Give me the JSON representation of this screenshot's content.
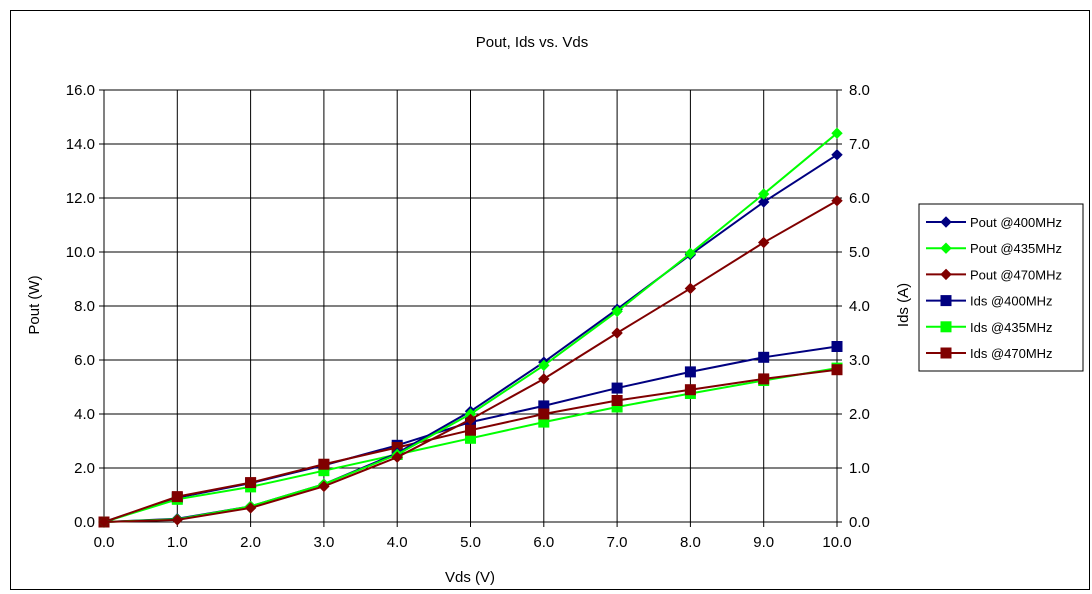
{
  "chart_data": {
    "type": "line",
    "title": "Pout, Ids vs. Vds",
    "xlabel": "Vds (V)",
    "ylabel_left": "Pout (W)",
    "ylabel_right": "Ids (A)",
    "xlim": [
      0,
      10
    ],
    "ylim_left": [
      0,
      16
    ],
    "ylim_right": [
      0,
      8
    ],
    "x": [
      0,
      1,
      2,
      3,
      4,
      5,
      6,
      7,
      8,
      9,
      10
    ],
    "x_tick_labels": [
      "0.0",
      "1.0",
      "2.0",
      "3.0",
      "4.0",
      "5.0",
      "6.0",
      "7.0",
      "8.0",
      "9.0",
      "10.0"
    ],
    "y_left_tick_labels": [
      "0.0",
      "2.0",
      "4.0",
      "6.0",
      "8.0",
      "10.0",
      "12.0",
      "14.0",
      "16.0"
    ],
    "y_right_tick_labels": [
      "0.0",
      "1.0",
      "2.0",
      "3.0",
      "4.0",
      "5.0",
      "6.0",
      "7.0",
      "8.0"
    ],
    "grid": true,
    "legend_position": "right",
    "series": [
      {
        "name": "Pout @400MHz",
        "axis": "left",
        "marker": "diamond",
        "color": "#000080",
        "values": [
          0.0,
          0.12,
          0.58,
          1.4,
          2.55,
          4.1,
          5.92,
          7.88,
          9.9,
          11.85,
          13.6
        ]
      },
      {
        "name": "Pout @435MHz",
        "axis": "left",
        "marker": "diamond",
        "color": "#00FF00",
        "values": [
          0.0,
          0.1,
          0.58,
          1.4,
          2.5,
          4.0,
          5.8,
          7.8,
          9.95,
          12.15,
          14.4
        ]
      },
      {
        "name": "Pout @470MHz",
        "axis": "left",
        "marker": "diamond",
        "color": "#800000",
        "values": [
          0.0,
          0.08,
          0.52,
          1.32,
          2.4,
          3.8,
          5.3,
          7.0,
          8.65,
          10.35,
          11.9
        ]
      },
      {
        "name": "Ids @400MHz",
        "axis": "right",
        "marker": "square",
        "color": "#000080",
        "values": [
          0.0,
          0.45,
          0.72,
          1.05,
          1.42,
          1.85,
          2.15,
          2.48,
          2.78,
          3.05,
          3.25
        ]
      },
      {
        "name": "Ids @435MHz",
        "axis": "right",
        "marker": "square",
        "color": "#00FF00",
        "values": [
          0.0,
          0.42,
          0.65,
          0.95,
          1.25,
          1.55,
          1.85,
          2.13,
          2.38,
          2.62,
          2.85
        ]
      },
      {
        "name": "Ids @470MHz",
        "axis": "right",
        "marker": "square",
        "color": "#800000",
        "values": [
          0.0,
          0.47,
          0.73,
          1.07,
          1.38,
          1.7,
          2.0,
          2.25,
          2.45,
          2.65,
          2.82
        ]
      }
    ]
  }
}
